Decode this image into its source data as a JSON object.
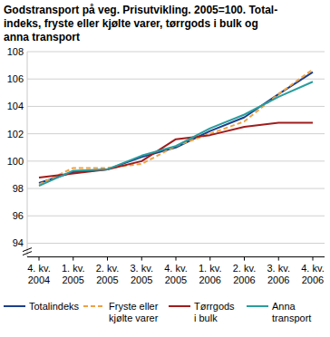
{
  "chart_data": {
    "type": "line",
    "title": "Godstransport på veg. Prisutvikling. 2005=100. Total-\nindeks, fryste eller kjølte varer, tørrgods i bulk og\nanna transport",
    "categories": [
      "4. kv.\n2004",
      "1. kv.\n2005",
      "2. kv.\n2005",
      "3. kv.\n2005",
      "4. kv.\n2005",
      "1. kv.\n2006",
      "2. kv.\n2006",
      "3. kv.\n2006",
      "4. kv.\n2006"
    ],
    "series": [
      {
        "name": "Totalindeks",
        "color": "#1c3f8c",
        "line_style": "solid",
        "values": [
          98.4,
          99.2,
          99.4,
          100.3,
          101.0,
          102.2,
          103.2,
          104.9,
          106.5
        ]
      },
      {
        "name": "Fryste eller\nkjølte varer",
        "color": "#f0a040",
        "line_style": "dashed",
        "values": [
          98.3,
          99.5,
          99.5,
          99.8,
          101.1,
          102.0,
          102.9,
          104.9,
          106.7
        ]
      },
      {
        "name": "Tørrgods\ni bulk",
        "color": "#a01c1c",
        "line_style": "solid",
        "values": [
          98.8,
          99.1,
          99.4,
          100.0,
          101.6,
          101.9,
          102.5,
          102.8,
          102.8
        ]
      },
      {
        "name": "Anna\ntransport",
        "color": "#2a9d9d",
        "line_style": "solid",
        "values": [
          98.2,
          99.3,
          99.4,
          100.4,
          101.1,
          102.4,
          103.4,
          104.7,
          105.8
        ]
      }
    ],
    "ylim": [
      93,
      108
    ],
    "yticks": [
      94,
      96,
      98,
      100,
      102,
      104,
      106,
      108
    ],
    "grid": true,
    "legend": "bottom"
  }
}
